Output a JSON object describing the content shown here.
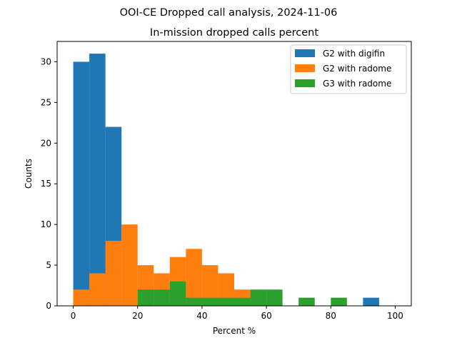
{
  "chart_data": {
    "type": "bar",
    "suptitle": "OOI-CE Dropped call analysis, 2024-11-06",
    "title": "In-mission dropped calls percent",
    "xlabel": "Percent %",
    "ylabel": "Counts",
    "xlim": [
      -5,
      105
    ],
    "ylim": [
      0,
      32.5
    ],
    "x_ticks": [
      0,
      20,
      40,
      60,
      80,
      100
    ],
    "y_ticks": [
      0,
      5,
      10,
      15,
      20,
      25,
      30
    ],
    "x_tick_labels": [
      "0",
      "20",
      "40",
      "60",
      "80",
      "100"
    ],
    "y_tick_labels": [
      "0",
      "5",
      "10",
      "15",
      "20",
      "25",
      "30"
    ],
    "bin_width": 5,
    "bin_starts": [
      0,
      5,
      10,
      15,
      20,
      25,
      30,
      35,
      40,
      45,
      50,
      55,
      60,
      65,
      70,
      75,
      80,
      85,
      90,
      95
    ],
    "legend_position": "upper right",
    "series": [
      {
        "name": "G2 with digifin",
        "color": "#1f77b4",
        "values": [
          30,
          31,
          22,
          0,
          0,
          0,
          0,
          0,
          0,
          0,
          0,
          0,
          0,
          0,
          0,
          0,
          0,
          0,
          1,
          0
        ]
      },
      {
        "name": "G2 with radome",
        "color": "#ff7f0e",
        "values": [
          2,
          4,
          8,
          10,
          5,
          4,
          6,
          7,
          5,
          4,
          2,
          0,
          0,
          0,
          0,
          0,
          0,
          0,
          0,
          0
        ]
      },
      {
        "name": "G3 with radome",
        "color": "#2ca02c",
        "values": [
          0,
          0,
          0,
          0,
          2,
          2,
          3,
          1,
          1,
          1,
          1,
          2,
          2,
          0,
          1,
          0,
          1,
          0,
          0,
          0
        ]
      }
    ]
  }
}
